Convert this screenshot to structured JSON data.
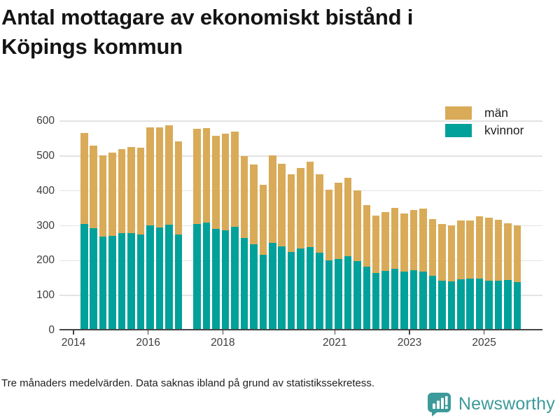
{
  "title": "Antal mottagare av ekonomiskt bistånd i Köpings kommun",
  "title_lines": [
    "Antal mottagare av ekonomiskt bistånd i",
    "Köpings kommun"
  ],
  "footnote": "Tre månaders medelvärden. Data saknas ibland på grund av statistikssekretess.",
  "brand": {
    "name": "Newsworthy",
    "icon": "speech-bubble-bar-chart-icon",
    "color": "#3d9a9a"
  },
  "legend": [
    {
      "label": "män",
      "color": "#d9ab58"
    },
    {
      "label": "kvinnor",
      "color": "#00a19a"
    }
  ],
  "colors": {
    "man": "#d9ab58",
    "kvinnor": "#00a19a",
    "gridline": "#e3e3e3",
    "axis": "#454545",
    "text": "#3d3d3d"
  },
  "chart_data": {
    "type": "bar",
    "stacked": true,
    "title": "Antal mottagare av ekonomiskt bistånd i Köpings kommun",
    "note": "Tre månaders medelvärden (kvartal). null = data saknas på grund av statistikssekretess (2017 Q1).",
    "grid": "horizontal",
    "legend_position": "top-right",
    "ylim": [
      0,
      600
    ],
    "y_ticks": [
      0,
      100,
      200,
      300,
      400,
      500,
      600
    ],
    "x_tick_labels": [
      "2014",
      "2016",
      "2018",
      "2021",
      "2023",
      "2025"
    ],
    "categories": [
      "2014 Q2",
      "2014 Q3",
      "2014 Q4",
      "2015 Q1",
      "2015 Q2",
      "2015 Q3",
      "2015 Q4",
      "2016 Q1",
      "2016 Q2",
      "2016 Q3",
      "2016 Q4",
      "2017 Q1",
      "2017 Q2",
      "2017 Q3",
      "2017 Q4",
      "2018 Q1",
      "2018 Q2",
      "2018 Q3",
      "2018 Q4",
      "2019 Q1",
      "2019 Q2",
      "2019 Q3",
      "2019 Q4",
      "2020 Q1",
      "2020 Q2",
      "2020 Q3",
      "2020 Q4",
      "2021 Q1",
      "2021 Q2",
      "2021 Q3",
      "2021 Q4",
      "2022 Q1",
      "2022 Q2",
      "2022 Q3",
      "2022 Q4",
      "2023 Q1",
      "2023 Q2",
      "2023 Q3",
      "2023 Q4",
      "2024 Q1",
      "2024 Q2",
      "2024 Q3",
      "2024 Q4",
      "2025 Q1",
      "2025 Q2",
      "2025 Q3",
      "2025 Q4"
    ],
    "series": [
      {
        "name": "kvinnor",
        "color": "#00a19a",
        "values": [
          305,
          293,
          268,
          271,
          278,
          279,
          275,
          301,
          295,
          303,
          274,
          null,
          305,
          310,
          292,
          287,
          297,
          265,
          247,
          217,
          250,
          241,
          224,
          235,
          238,
          222,
          200,
          205,
          212,
          198,
          183,
          165,
          170,
          177,
          168,
          173,
          169,
          157,
          143,
          140,
          147,
          149,
          148,
          143,
          142,
          145,
          138
        ]
      },
      {
        "name": "män",
        "color": "#d9ab58",
        "values": [
          260,
          237,
          234,
          238,
          241,
          247,
          248,
          282,
          287,
          286,
          268,
          null,
          273,
          270,
          266,
          276,
          273,
          235,
          228,
          200,
          251,
          237,
          223,
          230,
          245,
          226,
          203,
          218,
          225,
          204,
          177,
          165,
          170,
          174,
          167,
          172,
          181,
          162,
          163,
          161,
          168,
          166,
          180,
          180,
          175,
          163,
          163
        ]
      }
    ],
    "totals": [
      565,
      530,
      502,
      509,
      519,
      526,
      523,
      583,
      582,
      589,
      542,
      null,
      578,
      580,
      558,
      563,
      570,
      500,
      475,
      417,
      501,
      478,
      447,
      465,
      483,
      448,
      403,
      423,
      437,
      402,
      360,
      330,
      340,
      351,
      335,
      345,
      350,
      319,
      306,
      301,
      315,
      315,
      328,
      323,
      317,
      308,
      301
    ]
  }
}
